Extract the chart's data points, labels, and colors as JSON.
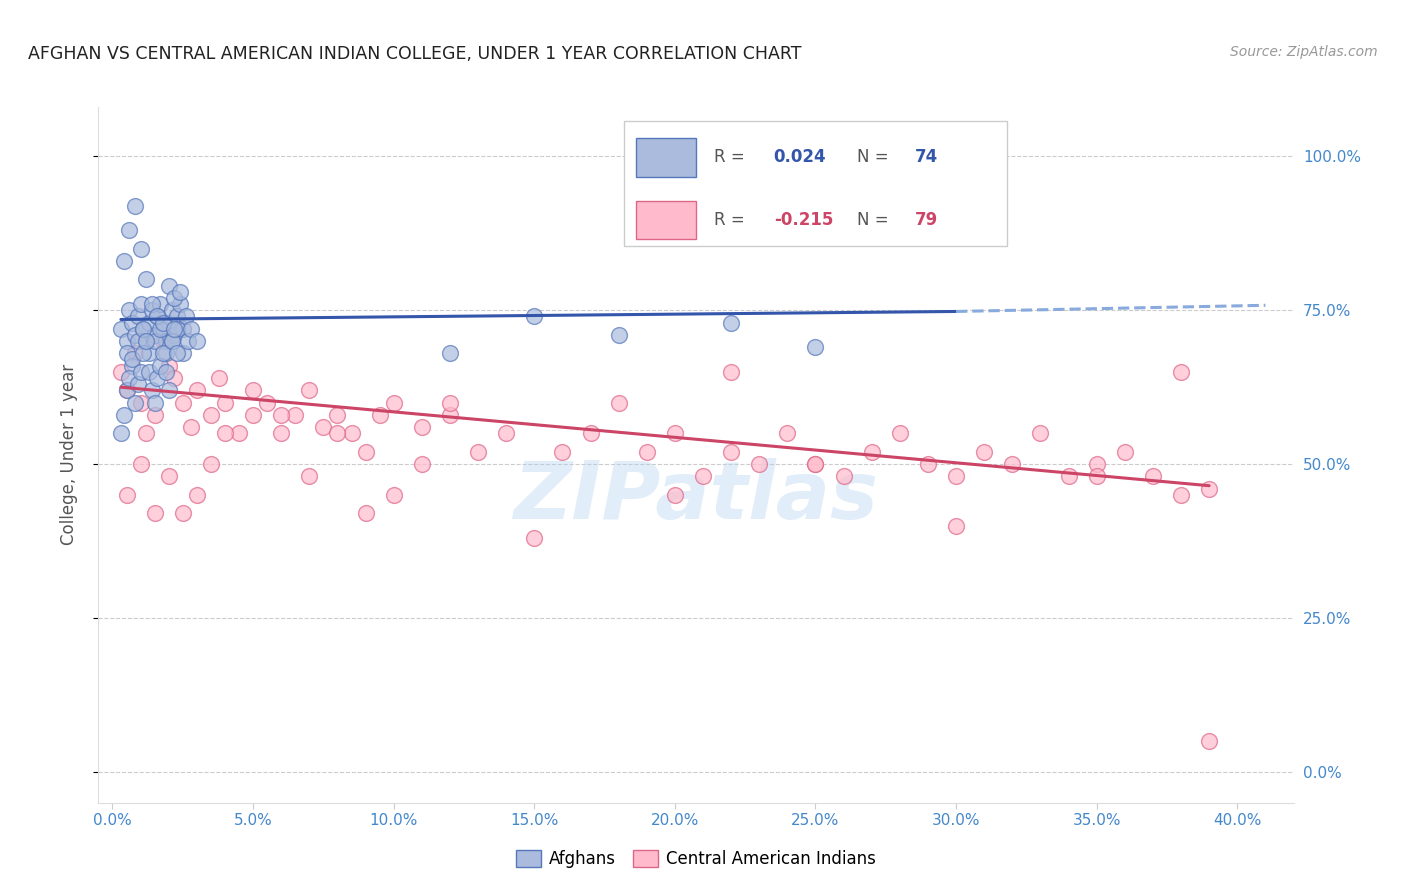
{
  "title": "AFGHAN VS CENTRAL AMERICAN INDIAN COLLEGE, UNDER 1 YEAR CORRELATION CHART",
  "source": "Source: ZipAtlas.com",
  "ylabel": "College, Under 1 year",
  "xlabel_ticks": [
    0.0,
    0.05,
    0.1,
    0.15,
    0.2,
    0.25,
    0.3,
    0.35,
    0.4
  ],
  "ylabel_ticks": [
    0.0,
    0.25,
    0.5,
    0.75,
    1.0
  ],
  "xlim": [
    -0.005,
    0.42
  ],
  "ylim": [
    -0.05,
    1.08
  ],
  "blue_R": 0.024,
  "blue_N": 74,
  "pink_R": -0.215,
  "pink_N": 79,
  "blue_fill_color": "#AABBDD",
  "blue_edge_color": "#5577BB",
  "pink_fill_color": "#FFBBCC",
  "pink_edge_color": "#DD6688",
  "blue_line_color": "#3355AA",
  "pink_line_color": "#CC4466",
  "dashed_line_color": "#88AADD",
  "grid_color": "#CCCCCC",
  "axis_label_color": "#4488CC",
  "title_color": "#222222",
  "watermark": "ZIPatlas",
  "blue_scatter_x": [
    0.003,
    0.005,
    0.006,
    0.007,
    0.008,
    0.009,
    0.01,
    0.011,
    0.012,
    0.013,
    0.014,
    0.015,
    0.016,
    0.017,
    0.018,
    0.019,
    0.02,
    0.021,
    0.022,
    0.023,
    0.024,
    0.025,
    0.005,
    0.007,
    0.009,
    0.011,
    0.013,
    0.015,
    0.017,
    0.019,
    0.021,
    0.023,
    0.025,
    0.027,
    0.004,
    0.006,
    0.008,
    0.01,
    0.012,
    0.014,
    0.016,
    0.018,
    0.02,
    0.022,
    0.024,
    0.026,
    0.028,
    0.03,
    0.12,
    0.15,
    0.18,
    0.22,
    0.25,
    0.003,
    0.004,
    0.005,
    0.006,
    0.007,
    0.008,
    0.009,
    0.01,
    0.011,
    0.012,
    0.013,
    0.014,
    0.015,
    0.016,
    0.017,
    0.018,
    0.019,
    0.02,
    0.021,
    0.022,
    0.023
  ],
  "blue_scatter_y": [
    0.72,
    0.7,
    0.75,
    0.73,
    0.71,
    0.74,
    0.76,
    0.72,
    0.7,
    0.73,
    0.75,
    0.71,
    0.74,
    0.76,
    0.72,
    0.7,
    0.73,
    0.75,
    0.71,
    0.74,
    0.76,
    0.72,
    0.68,
    0.66,
    0.7,
    0.72,
    0.68,
    0.7,
    0.72,
    0.68,
    0.7,
    0.72,
    0.68,
    0.7,
    0.83,
    0.88,
    0.92,
    0.85,
    0.8,
    0.76,
    0.74,
    0.73,
    0.79,
    0.77,
    0.78,
    0.74,
    0.72,
    0.7,
    0.68,
    0.74,
    0.71,
    0.73,
    0.69,
    0.55,
    0.58,
    0.62,
    0.64,
    0.67,
    0.6,
    0.63,
    0.65,
    0.68,
    0.7,
    0.65,
    0.62,
    0.6,
    0.64,
    0.66,
    0.68,
    0.65,
    0.62,
    0.7,
    0.72,
    0.68
  ],
  "pink_scatter_x": [
    0.003,
    0.005,
    0.008,
    0.01,
    0.012,
    0.015,
    0.018,
    0.02,
    0.022,
    0.025,
    0.028,
    0.03,
    0.035,
    0.038,
    0.04,
    0.045,
    0.05,
    0.055,
    0.06,
    0.065,
    0.07,
    0.075,
    0.08,
    0.085,
    0.09,
    0.095,
    0.1,
    0.11,
    0.12,
    0.13,
    0.14,
    0.15,
    0.16,
    0.17,
    0.18,
    0.19,
    0.2,
    0.21,
    0.22,
    0.23,
    0.24,
    0.25,
    0.26,
    0.27,
    0.28,
    0.29,
    0.3,
    0.31,
    0.32,
    0.33,
    0.34,
    0.35,
    0.36,
    0.37,
    0.38,
    0.39,
    0.005,
    0.01,
    0.015,
    0.02,
    0.025,
    0.03,
    0.035,
    0.04,
    0.05,
    0.06,
    0.07,
    0.08,
    0.09,
    0.1,
    0.11,
    0.12,
    0.2,
    0.22,
    0.25,
    0.3,
    0.35,
    0.38,
    0.39
  ],
  "pink_scatter_y": [
    0.65,
    0.62,
    0.68,
    0.6,
    0.55,
    0.58,
    0.7,
    0.66,
    0.64,
    0.6,
    0.56,
    0.62,
    0.58,
    0.64,
    0.6,
    0.55,
    0.58,
    0.6,
    0.55,
    0.58,
    0.62,
    0.56,
    0.58,
    0.55,
    0.52,
    0.58,
    0.6,
    0.56,
    0.58,
    0.52,
    0.55,
    0.38,
    0.52,
    0.55,
    0.6,
    0.52,
    0.55,
    0.48,
    0.52,
    0.5,
    0.55,
    0.5,
    0.48,
    0.52,
    0.55,
    0.5,
    0.48,
    0.52,
    0.5,
    0.55,
    0.48,
    0.5,
    0.52,
    0.48,
    0.45,
    0.46,
    0.45,
    0.5,
    0.42,
    0.48,
    0.42,
    0.45,
    0.5,
    0.55,
    0.62,
    0.58,
    0.48,
    0.55,
    0.42,
    0.45,
    0.5,
    0.6,
    0.45,
    0.65,
    0.5,
    0.4,
    0.48,
    0.65,
    0.05
  ]
}
